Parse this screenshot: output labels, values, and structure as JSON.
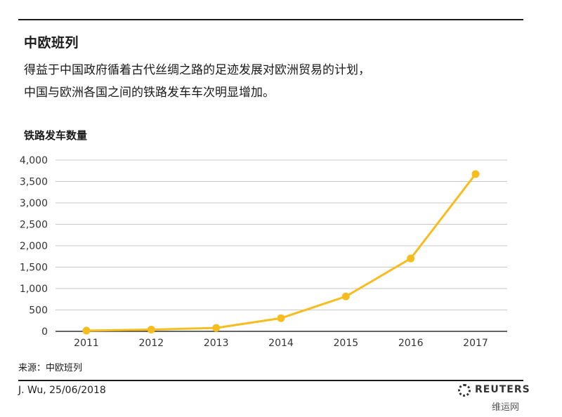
{
  "header": {
    "title": "中欧班列",
    "subtitle_line1": "得益于中国政府循着古代丝绸之路的足迹发展对欧洲贸易的计划，",
    "subtitle_line2": "中国与欧洲各国之间的铁路发车车次明显增加。"
  },
  "footer": {
    "source": "来源：中欧班列",
    "byline": "J. Wu,  25/06/2018",
    "logo_text": "REUTERS",
    "watermark": "维运网"
  },
  "chart_data": {
    "type": "line",
    "title": "中欧班列",
    "ylabel": "铁路发车数量",
    "xlabel": "",
    "categories": [
      "2011",
      "2012",
      "2013",
      "2014",
      "2015",
      "2016",
      "2017"
    ],
    "series": [
      {
        "name": "",
        "values": [
          17,
          42,
          80,
          308,
          815,
          1702,
          3673
        ]
      }
    ],
    "yticks": [
      0,
      500,
      1000,
      1500,
      2000,
      2500,
      3000,
      3500,
      4000
    ],
    "ytick_labels": [
      "0",
      "500",
      "1,000",
      "1,500",
      "2,000",
      "2,500",
      "3,000",
      "3,500",
      "4,000"
    ],
    "ylim": [
      0,
      4000
    ],
    "grid": true,
    "legend": "none",
    "line_color": "#f5bd1f",
    "grid_color": "#c8c8c8"
  }
}
